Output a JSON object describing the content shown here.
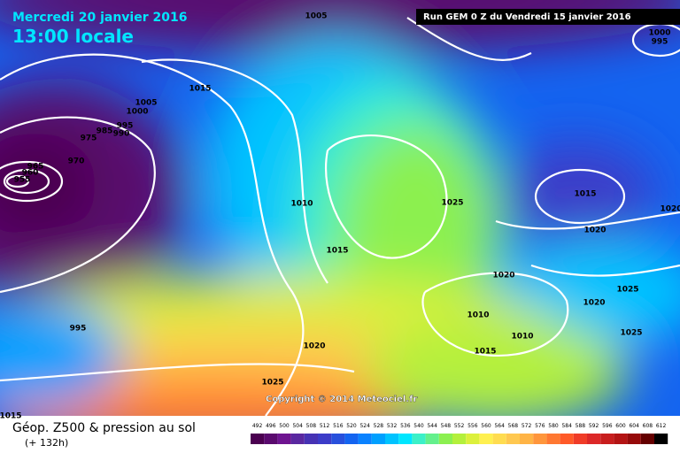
{
  "header": {
    "date": "Mercredi 20 janvier 2016",
    "time": "13:00 locale",
    "run": "Run GEM 0 Z du Vendredi 15 janvier 2016"
  },
  "copyright": "Copyright © 2014 Meteociel.fr",
  "footer": {
    "title": "Géop. Z500 & pression au sol",
    "lead": "(+ 132h)"
  },
  "isobar_labels": [
    1005,
    1000,
    995,
    1015,
    1005,
    1000,
    995,
    990,
    985,
    975,
    970,
    965,
    960,
    955,
    1010,
    1025,
    1015,
    1020,
    1015,
    1020,
    1020,
    1025,
    1020,
    1010,
    995,
    1010,
    1025,
    1020,
    1015,
    1025,
    1015
  ],
  "colorbar": {
    "levels": [
      492,
      496,
      500,
      504,
      508,
      512,
      516,
      520,
      524,
      528,
      532,
      536,
      540,
      544,
      548,
      552,
      556,
      560,
      564,
      568,
      572,
      576,
      580,
      584,
      588,
      592,
      596,
      600,
      604,
      608,
      612
    ],
    "colors": [
      "#4b0050",
      "#5a0a6e",
      "#6e1490",
      "#5a28a0",
      "#4632b4",
      "#3c3cc8",
      "#2850dc",
      "#1464f0",
      "#0a82ff",
      "#00a0ff",
      "#00c3ff",
      "#00e6ff",
      "#3cf0c8",
      "#64f08c",
      "#8cf050",
      "#b4f03c",
      "#dcf03c",
      "#fff050",
      "#ffdc50",
      "#ffc850",
      "#ffb446",
      "#ff963c",
      "#ff7832",
      "#ff5a28",
      "#f03c28",
      "#dc2828",
      "#c81e1e",
      "#b41414",
      "#960a0a",
      "#640000",
      "#000000"
    ]
  }
}
